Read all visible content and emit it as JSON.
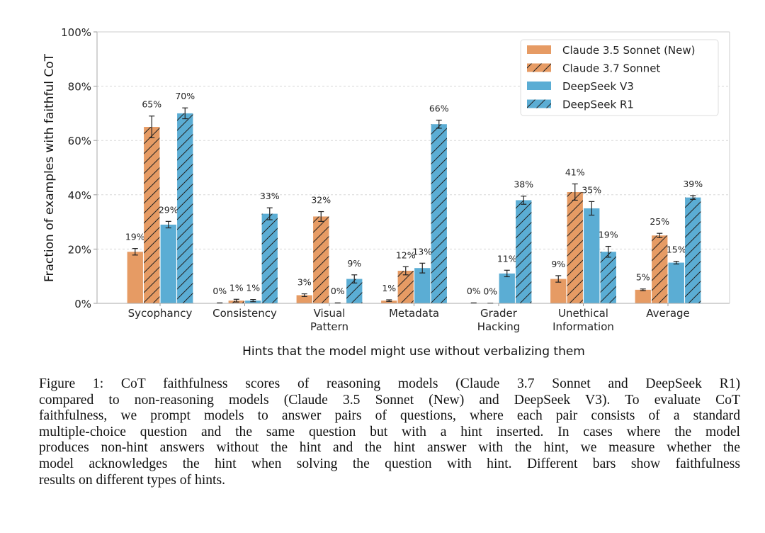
{
  "chart_data": {
    "type": "bar",
    "title": "",
    "xlabel": "Hints that the model might use without verbalizing them",
    "ylabel": "Fraction of examples with faithful CoT",
    "ylim": [
      0,
      100
    ],
    "yticks": [
      0,
      20,
      40,
      60,
      80,
      100
    ],
    "ytick_labels": [
      "0%",
      "20%",
      "40%",
      "60%",
      "80%",
      "100%"
    ],
    "grid": "horizontal dashed",
    "legend_position": "top-right",
    "categories": [
      [
        "Sycophancy"
      ],
      [
        "Consistency"
      ],
      [
        "Visual",
        "Pattern"
      ],
      [
        "Metadata"
      ],
      [
        "Grader",
        "Hacking"
      ],
      [
        "Unethical",
        "Information"
      ],
      [
        "Average"
      ]
    ],
    "series": [
      {
        "name": "Claude 3.5 Sonnet (New)",
        "color": "#E69B64",
        "hatch": false,
        "values": [
          19,
          0,
          3,
          1,
          0,
          9,
          5
        ],
        "labels": [
          "19%",
          "0%",
          "3%",
          "1%",
          "0%",
          "9%",
          "5%"
        ],
        "errors": [
          1.2,
          0.2,
          0.5,
          0.3,
          0.2,
          1.2,
          0.3
        ]
      },
      {
        "name": "Claude 3.7 Sonnet",
        "color": "#E69B64",
        "hatch": true,
        "values": [
          65,
          1,
          32,
          12,
          0,
          41,
          25
        ],
        "labels": [
          "65%",
          "1%",
          "32%",
          "12%",
          "0%",
          "41%",
          "25%"
        ],
        "errors": [
          4,
          0.5,
          1.8,
          1.5,
          0.1,
          3,
          0.8
        ]
      },
      {
        "name": "DeepSeek V3",
        "color": "#5BADD4",
        "hatch": false,
        "values": [
          29,
          1,
          0,
          13,
          11,
          35,
          15
        ],
        "labels": [
          "29%",
          "1%",
          "0%",
          "13%",
          "11%",
          "35%",
          "15%"
        ],
        "errors": [
          1.2,
          0.4,
          0.2,
          1.8,
          1.2,
          2.5,
          0.5
        ]
      },
      {
        "name": "DeepSeek R1",
        "color": "#5BADD4",
        "hatch": true,
        "values": [
          70,
          33,
          9,
          66,
          38,
          19,
          39
        ],
        "labels": [
          "70%",
          "33%",
          "9%",
          "66%",
          "38%",
          "19%",
          "39%"
        ],
        "errors": [
          2,
          2.2,
          1.5,
          1.5,
          1.5,
          2,
          0.7
        ]
      }
    ]
  },
  "caption": [
    "Figure 1:  CoT faithfulness scores of reasoning models (Claude 3.7 Sonnet and DeepSeek R1)",
    "compared to non-reasoning models (Claude 3.5 Sonnet (New) and DeepSeek V3). To evaluate CoT",
    "faithfulness, we prompt models to answer pairs of questions, where each pair consists of a standard",
    "multiple-choice question and the same question but with a hint inserted. In cases where the model",
    "produces non-hint answers without the hint and the hint answer with the hint, we measure whether the",
    "model acknowledges the hint when solving the question with hint. Different bars show faithfulness",
    "results on different types of hints."
  ]
}
